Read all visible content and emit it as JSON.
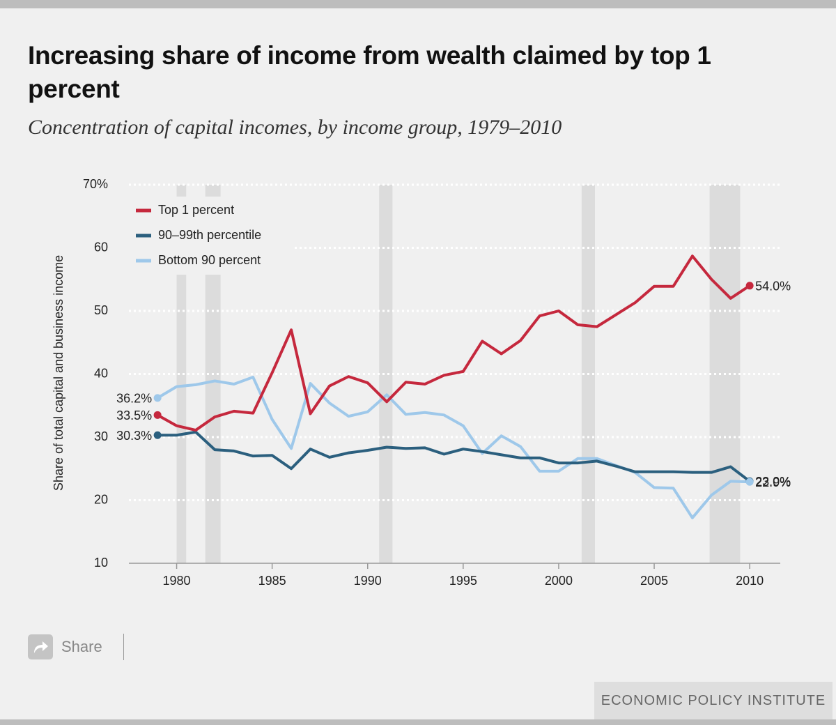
{
  "chart_data": {
    "type": "line",
    "title": "Increasing share of income from wealth claimed by top 1 percent",
    "subtitle": "Concentration of capital incomes, by income group, 1979–2010",
    "y_label": "Share of total capital and business income",
    "x": [
      1979,
      1980,
      1981,
      1982,
      1983,
      1984,
      1985,
      1986,
      1987,
      1988,
      1989,
      1990,
      1991,
      1992,
      1993,
      1994,
      1995,
      1996,
      1997,
      1998,
      1999,
      2000,
      2001,
      2002,
      2003,
      2004,
      2005,
      2006,
      2007,
      2008,
      2009,
      2010
    ],
    "series": [
      {
        "name": "Top 1 percent",
        "color": "#c5283d",
        "values": [
          33.5,
          31.8,
          31.1,
          33.2,
          34.1,
          33.8,
          40.2,
          47.0,
          33.7,
          38.1,
          39.6,
          38.6,
          35.6,
          38.7,
          38.4,
          39.8,
          40.4,
          45.2,
          43.2,
          45.3,
          49.2,
          50.0,
          47.8,
          47.5,
          49.4,
          51.3,
          53.9,
          53.9,
          58.7,
          55.0,
          52.0,
          54.0
        ],
        "value_labels": [
          "33.5%",
          null,
          null,
          null,
          null,
          null,
          null,
          null,
          null,
          null,
          null,
          null,
          null,
          null,
          null,
          null,
          null,
          null,
          null,
          null,
          null,
          null,
          null,
          null,
          null,
          null,
          null,
          null,
          null,
          null,
          null,
          "54.0%"
        ]
      },
      {
        "name": "90–99th percentile",
        "color": "#2b5f7e",
        "values": [
          30.3,
          30.3,
          30.8,
          28.0,
          27.8,
          27.0,
          27.1,
          25.0,
          28.1,
          26.8,
          27.5,
          27.9,
          28.4,
          28.2,
          28.3,
          27.3,
          28.1,
          27.7,
          27.2,
          26.7,
          26.7,
          25.9,
          25.9,
          26.2,
          25.4,
          24.5,
          24.5,
          24.5,
          24.4,
          24.4,
          25.3,
          23.0
        ],
        "value_labels": [
          "30.3%",
          null,
          null,
          null,
          null,
          null,
          null,
          null,
          null,
          null,
          null,
          null,
          null,
          null,
          null,
          null,
          null,
          null,
          null,
          null,
          null,
          null,
          null,
          null,
          null,
          null,
          null,
          null,
          null,
          null,
          null,
          "23.0%"
        ]
      },
      {
        "name": "Bottom 90 percent",
        "color": "#9ec8ea",
        "values": [
          36.2,
          38.0,
          38.3,
          38.9,
          38.4,
          39.5,
          32.8,
          28.2,
          38.5,
          35.4,
          33.3,
          34.0,
          36.7,
          33.6,
          33.9,
          33.5,
          31.8,
          27.4,
          30.2,
          28.5,
          24.6,
          24.6,
          26.6,
          26.6,
          25.5,
          24.4,
          22.0,
          21.9,
          17.2,
          20.8,
          23.0,
          22.9
        ],
        "value_labels": [
          "36.2%",
          null,
          null,
          null,
          null,
          null,
          null,
          null,
          null,
          null,
          null,
          null,
          null,
          null,
          null,
          null,
          null,
          null,
          null,
          null,
          null,
          null,
          null,
          null,
          null,
          null,
          null,
          null,
          null,
          null,
          null,
          "22.9%"
        ]
      }
    ],
    "recessions": [
      {
        "start": 1980.0,
        "end": 1980.5
      },
      {
        "start": 1981.5,
        "end": 1982.3
      },
      {
        "start": 1990.6,
        "end": 1991.3
      },
      {
        "start": 2001.2,
        "end": 2001.9
      },
      {
        "start": 2007.9,
        "end": 2009.5
      }
    ],
    "recession_color": "#dcdcdc",
    "xlim": [
      1977.5,
      2011.6
    ],
    "xticks": [
      1980,
      1985,
      1990,
      1995,
      2000,
      2005,
      2010
    ],
    "ylim": [
      10,
      70
    ],
    "yticks": [
      10,
      20,
      30,
      40,
      50,
      60,
      {
        "value": 70,
        "label": "70%"
      }
    ],
    "grid": true,
    "legend": "upper-left"
  },
  "share_label": "Share",
  "footer": "ECONOMIC POLICY INSTITUTE"
}
